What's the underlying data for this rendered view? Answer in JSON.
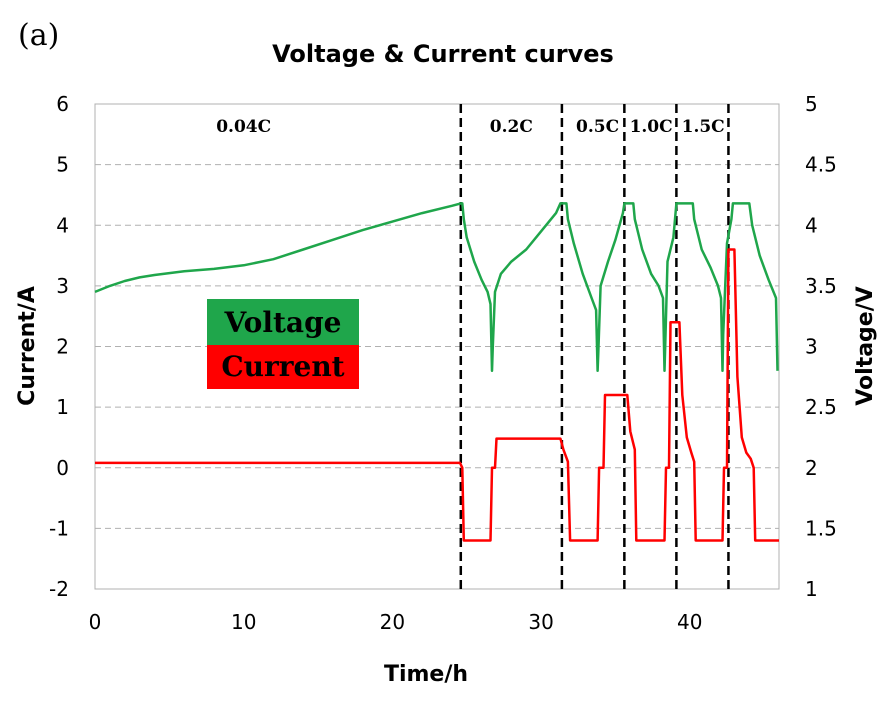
{
  "panel_label": "(a)",
  "colors": {
    "voltage": "#1fa64b",
    "current": "#ff0000",
    "grid": "#b0b0b0",
    "legend_voltage_bg": "#1fa64b",
    "legend_current_bg": "#ff0000"
  },
  "chart_data": {
    "type": "line",
    "title": "Voltage & Current curves",
    "xlabel": "Time/h",
    "ylabel_left": "Current/A",
    "ylabel_right": "Voltage/V",
    "xlim": [
      0,
      46
    ],
    "ylim_left": [
      -2,
      6
    ],
    "ylim_right": [
      1,
      5
    ],
    "x_ticks": [
      "0",
      "10",
      "20",
      "30",
      "40"
    ],
    "y_left_ticks": [
      "-2",
      "-1",
      "0",
      "1",
      "2",
      "3",
      "4",
      "5",
      "6"
    ],
    "y_right_ticks": [
      "1",
      "1.5",
      "2",
      "2.5",
      "3",
      "3.5",
      "4",
      "4.5",
      "5"
    ],
    "grid": "horizontal dashed",
    "legend": [
      "Voltage",
      "Current"
    ],
    "rate_labels": [
      {
        "text": "0.04C",
        "x": 10
      },
      {
        "text": "0.2C",
        "x": 28
      },
      {
        "text": "0.5C",
        "x": 33.8
      },
      {
        "text": "1.0C",
        "x": 37.4
      },
      {
        "text": "1.5C",
        "x": 40.9
      }
    ],
    "dividers_x": [
      24.6,
      31.4,
      35.6,
      39.1,
      42.6
    ],
    "series": [
      {
        "name": "Voltage",
        "axis": "right",
        "points": [
          [
            0,
            3.45
          ],
          [
            1,
            3.5
          ],
          [
            2,
            3.54
          ],
          [
            3,
            3.57
          ],
          [
            4,
            3.59
          ],
          [
            6,
            3.62
          ],
          [
            8,
            3.64
          ],
          [
            10,
            3.67
          ],
          [
            12,
            3.72
          ],
          [
            14,
            3.8
          ],
          [
            16,
            3.88
          ],
          [
            18,
            3.96
          ],
          [
            20,
            4.03
          ],
          [
            22,
            4.1
          ],
          [
            24,
            4.16
          ],
          [
            24.6,
            4.18
          ],
          [
            24.7,
            4.18
          ],
          [
            24.8,
            4.05
          ],
          [
            25,
            3.9
          ],
          [
            25.5,
            3.7
          ],
          [
            26,
            3.55
          ],
          [
            26.4,
            3.45
          ],
          [
            26.6,
            3.35
          ],
          [
            26.7,
            2.8
          ],
          [
            26.75,
            3.0
          ],
          [
            26.9,
            3.45
          ],
          [
            27.3,
            3.6
          ],
          [
            28,
            3.7
          ],
          [
            29,
            3.8
          ],
          [
            30,
            3.95
          ],
          [
            31,
            4.1
          ],
          [
            31.3,
            4.18
          ],
          [
            31.7,
            4.18
          ],
          [
            31.8,
            4.05
          ],
          [
            32.2,
            3.85
          ],
          [
            32.8,
            3.6
          ],
          [
            33.4,
            3.4
          ],
          [
            33.7,
            3.3
          ],
          [
            33.8,
            2.8
          ],
          [
            33.85,
            2.95
          ],
          [
            34,
            3.5
          ],
          [
            34.5,
            3.7
          ],
          [
            35,
            3.88
          ],
          [
            35.5,
            4.1
          ],
          [
            35.6,
            4.18
          ],
          [
            36.2,
            4.18
          ],
          [
            36.3,
            4.05
          ],
          [
            36.8,
            3.8
          ],
          [
            37.4,
            3.6
          ],
          [
            37.9,
            3.5
          ],
          [
            38.2,
            3.4
          ],
          [
            38.3,
            2.8
          ],
          [
            38.35,
            3.0
          ],
          [
            38.5,
            3.7
          ],
          [
            38.9,
            3.9
          ],
          [
            39.1,
            4.18
          ],
          [
            40.2,
            4.18
          ],
          [
            40.3,
            4.05
          ],
          [
            40.8,
            3.8
          ],
          [
            41.4,
            3.65
          ],
          [
            41.9,
            3.5
          ],
          [
            42.1,
            3.4
          ],
          [
            42.2,
            2.8
          ],
          [
            42.25,
            3.1
          ],
          [
            42.5,
            3.85
          ],
          [
            42.8,
            4.05
          ],
          [
            42.9,
            4.18
          ],
          [
            44,
            4.18
          ],
          [
            44.2,
            4.0
          ],
          [
            44.7,
            3.75
          ],
          [
            45.3,
            3.55
          ],
          [
            45.8,
            3.4
          ],
          [
            45.9,
            2.8
          ]
        ]
      },
      {
        "name": "Current",
        "axis": "left",
        "points": [
          [
            0,
            0.08
          ],
          [
            24.55,
            0.08
          ],
          [
            24.7,
            0
          ],
          [
            24.8,
            -1.2
          ],
          [
            26.6,
            -1.2
          ],
          [
            26.7,
            0
          ],
          [
            26.9,
            0
          ],
          [
            27.0,
            0.48
          ],
          [
            31.3,
            0.48
          ],
          [
            31.5,
            0.3
          ],
          [
            31.8,
            0.1
          ],
          [
            31.95,
            -1.2
          ],
          [
            33.8,
            -1.2
          ],
          [
            33.9,
            0
          ],
          [
            34.2,
            0
          ],
          [
            34.3,
            1.2
          ],
          [
            35.8,
            1.2
          ],
          [
            36,
            0.6
          ],
          [
            36.3,
            0.3
          ],
          [
            36.4,
            -1.2
          ],
          [
            38.3,
            -1.2
          ],
          [
            38.4,
            0
          ],
          [
            38.6,
            0
          ],
          [
            38.7,
            2.4
          ],
          [
            39.3,
            2.4
          ],
          [
            39.5,
            1.2
          ],
          [
            39.8,
            0.5
          ],
          [
            40.1,
            0.25
          ],
          [
            40.3,
            0.1
          ],
          [
            40.4,
            -1.2
          ],
          [
            42.2,
            -1.2
          ],
          [
            42.3,
            0
          ],
          [
            42.5,
            0
          ],
          [
            42.6,
            3.6
          ],
          [
            43.0,
            3.6
          ],
          [
            43.2,
            1.5
          ],
          [
            43.5,
            0.5
          ],
          [
            43.8,
            0.25
          ],
          [
            44.1,
            0.15
          ],
          [
            44.3,
            0
          ],
          [
            44.4,
            -1.2
          ],
          [
            46,
            -1.2
          ]
        ]
      }
    ]
  }
}
